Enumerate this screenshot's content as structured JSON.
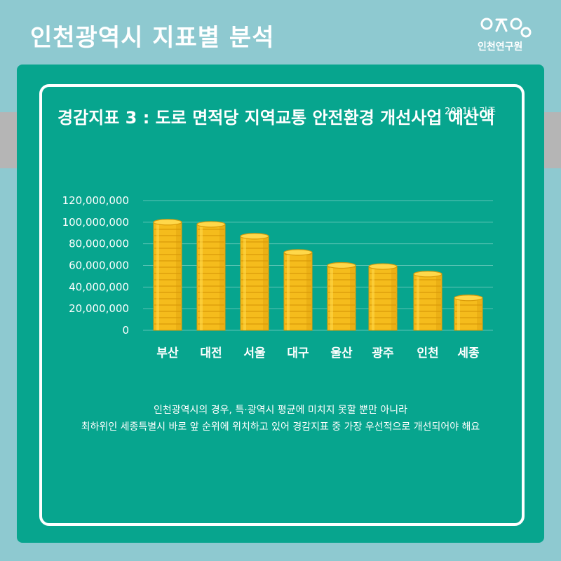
{
  "header": {
    "title": "인천광역시 지표별 분석",
    "logo_text": "인천연구원"
  },
  "chart_title": "경감지표 3 : 도로 면적당 지역교통 안전환경 개선사업 예산액",
  "base_year": "2021년 기준",
  "caption": {
    "line1": "인천광역시의 경우, 특·광역시 평균에 미치지 못할 뿐만 아니라",
    "line2": "최하위인 세종특별시 바로 앞 순위에 위치하고 있어 경감지표 중 가장 우선적으로 개선되어야 해요"
  },
  "colors": {
    "panel": "#07a58e",
    "background": "#8ec9d0",
    "coin": "#f5bc1c",
    "coin_dark": "#d99a08",
    "coin_light": "#ffd84a"
  },
  "chart_data": {
    "type": "bar",
    "categories": [
      "부산",
      "대전",
      "서울",
      "대구",
      "울산",
      "광주",
      "인천",
      "세종"
    ],
    "values": [
      100000000,
      98000000,
      87000000,
      72000000,
      60000000,
      59000000,
      52000000,
      30000000
    ],
    "yticks": [
      "0",
      "20,000,000",
      "40,000,000",
      "60,000,000",
      "80,000,000",
      "100,000,000",
      "120,000,000"
    ],
    "ylim": [
      0,
      120000000
    ],
    "grid": true,
    "legend": "none"
  }
}
